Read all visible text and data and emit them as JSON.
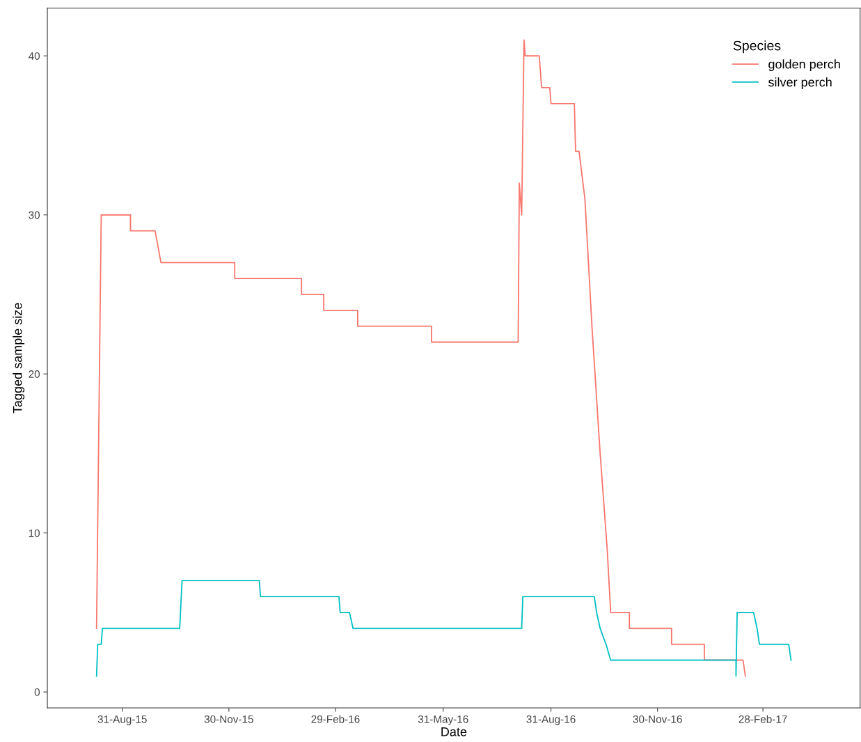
{
  "chart_data": {
    "type": "line",
    "xlabel": "Date",
    "ylabel": "Tagged sample size",
    "legend_title": "Species",
    "legend": "top right",
    "grid": false,
    "marker": "none",
    "line_style": "solid",
    "xlim": [
      "2015-06-28",
      "2017-05-22"
    ],
    "ylim": [
      -1,
      43
    ],
    "yticks": [
      0,
      10,
      20,
      30,
      40
    ],
    "xticks": [
      {
        "value": "2015-08-31",
        "label": "31-Aug-15"
      },
      {
        "value": "2015-11-30",
        "label": "30-Nov-15"
      },
      {
        "value": "2016-02-29",
        "label": "29-Feb-16"
      },
      {
        "value": "2016-05-31",
        "label": "31-May-16"
      },
      {
        "value": "2016-08-31",
        "label": "31-Aug-16"
      },
      {
        "value": "2016-11-30",
        "label": "30-Nov-16"
      },
      {
        "value": "2017-02-28",
        "label": "28-Feb-17"
      }
    ],
    "series": [
      {
        "name": "golden perch",
        "color": "#f8766d",
        "x": [
          "2015-08-09",
          "2015-08-13",
          "2015-09-07",
          "2015-09-07",
          "2015-09-28",
          "2015-10-03",
          "2015-12-05",
          "2015-12-05",
          "2016-01-31",
          "2016-01-31",
          "2016-02-19",
          "2016-02-19",
          "2016-03-19",
          "2016-03-19",
          "2016-05-21",
          "2016-05-21",
          "2016-08-03",
          "2016-08-04",
          "2016-08-06",
          "2016-08-08",
          "2016-08-09",
          "2016-08-21",
          "2016-08-23",
          "2016-08-30",
          "2016-08-31",
          "2016-09-20",
          "2016-09-21",
          "2016-09-24",
          "2016-09-29",
          "2016-10-05",
          "2016-10-12",
          "2016-10-18",
          "2016-10-21",
          "2016-11-06",
          "2016-11-06",
          "2016-12-12",
          "2016-12-12",
          "2017-01-09",
          "2017-01-09",
          "2017-02-11",
          "2017-02-13"
        ],
        "values": [
          4,
          30,
          30,
          29,
          29,
          27,
          27,
          26,
          26,
          25,
          25,
          24,
          24,
          23,
          23,
          22,
          22,
          32,
          30,
          41,
          40,
          40,
          38,
          38,
          37,
          37,
          34,
          34,
          31,
          23,
          15,
          9,
          5,
          5,
          4,
          4,
          3,
          3,
          2,
          2,
          1
        ]
      },
      {
        "name": "silver perch",
        "color": "#00bfc4",
        "x": [
          "2015-08-09",
          "2015-08-10",
          "2015-08-13",
          "2015-08-14",
          "2015-10-19",
          "2015-10-21",
          "2015-12-26",
          "2015-12-27",
          "2016-03-03",
          "2016-03-04",
          "2016-03-12",
          "2016-03-15",
          "2016-08-06",
          "2016-08-07",
          "2016-10-07",
          "2016-10-09",
          "2016-10-12",
          "2016-10-17",
          "2016-10-21",
          "2017-02-05",
          "2017-02-05",
          "2017-02-06",
          "2017-02-20",
          "2017-02-23",
          "2017-02-25",
          "2017-03-22",
          "2017-03-24"
        ],
        "values": [
          1,
          3,
          3,
          4,
          4,
          7,
          7,
          6,
          6,
          5,
          5,
          4,
          4,
          6,
          6,
          5,
          4,
          3,
          2,
          2,
          1,
          5,
          5,
          4,
          3,
          3,
          2
        ]
      }
    ]
  }
}
